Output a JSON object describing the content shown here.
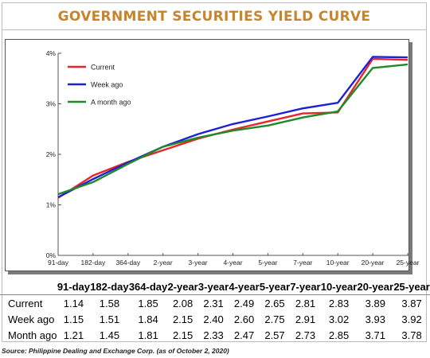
{
  "title": "GOVERNMENT SECURITIES YIELD CURVE",
  "source": "Source: Philippine Dealing and Exchange Corp. (as of October 2, 2020)",
  "chart_data": {
    "type": "line",
    "categories": [
      "91-day",
      "182-day",
      "364-day",
      "2-year",
      "3-year",
      "4-year",
      "5-year",
      "7-year",
      "10-year",
      "20-year",
      "25-year"
    ],
    "yticks": [
      "4%",
      "3%",
      "2%",
      "1%",
      "0%"
    ],
    "ytick_values": [
      4,
      3,
      2,
      1,
      0
    ],
    "ylim": [
      0,
      4
    ],
    "grid": false,
    "legend_position": "top-left",
    "series": [
      {
        "name": "Current",
        "color": "#e8262a",
        "values": [
          1.14,
          1.58,
          1.85,
          2.08,
          2.31,
          2.49,
          2.65,
          2.81,
          2.83,
          3.89,
          3.87
        ]
      },
      {
        "name": "Week ago",
        "color": "#1f1fd6",
        "values": [
          1.15,
          1.51,
          1.84,
          2.15,
          2.4,
          2.6,
          2.75,
          2.91,
          3.02,
          3.93,
          3.92
        ]
      },
      {
        "name": "A month ago",
        "color": "#1e8a2a",
        "values": [
          1.21,
          1.45,
          1.81,
          2.15,
          2.33,
          2.47,
          2.57,
          2.73,
          2.85,
          3.71,
          3.78
        ]
      }
    ]
  },
  "table": {
    "header": [
      "91-day",
      "182-day",
      "364-day",
      "2-year",
      "3-year",
      "4-year",
      "5-year",
      "7-year",
      "10-year",
      "20-year",
      "25-year"
    ],
    "rows": [
      {
        "label": "Current",
        "values": [
          "1.14",
          "1.58",
          "1.85",
          "2.08",
          "2.31",
          "2.49",
          "2.65",
          "2.81",
          "2.83",
          "3.89",
          "3.87"
        ]
      },
      {
        "label": "Week ago",
        "values": [
          "1.15",
          "1.51",
          "1.84",
          "2.15",
          "2.40",
          "2.60",
          "2.75",
          "2.91",
          "3.02",
          "3.93",
          "3.92"
        ]
      },
      {
        "label": "Month ago",
        "values": [
          "1.21",
          "1.45",
          "1.81",
          "2.15",
          "2.33",
          "2.47",
          "2.57",
          "2.73",
          "2.85",
          "3.71",
          "3.78"
        ]
      }
    ]
  }
}
